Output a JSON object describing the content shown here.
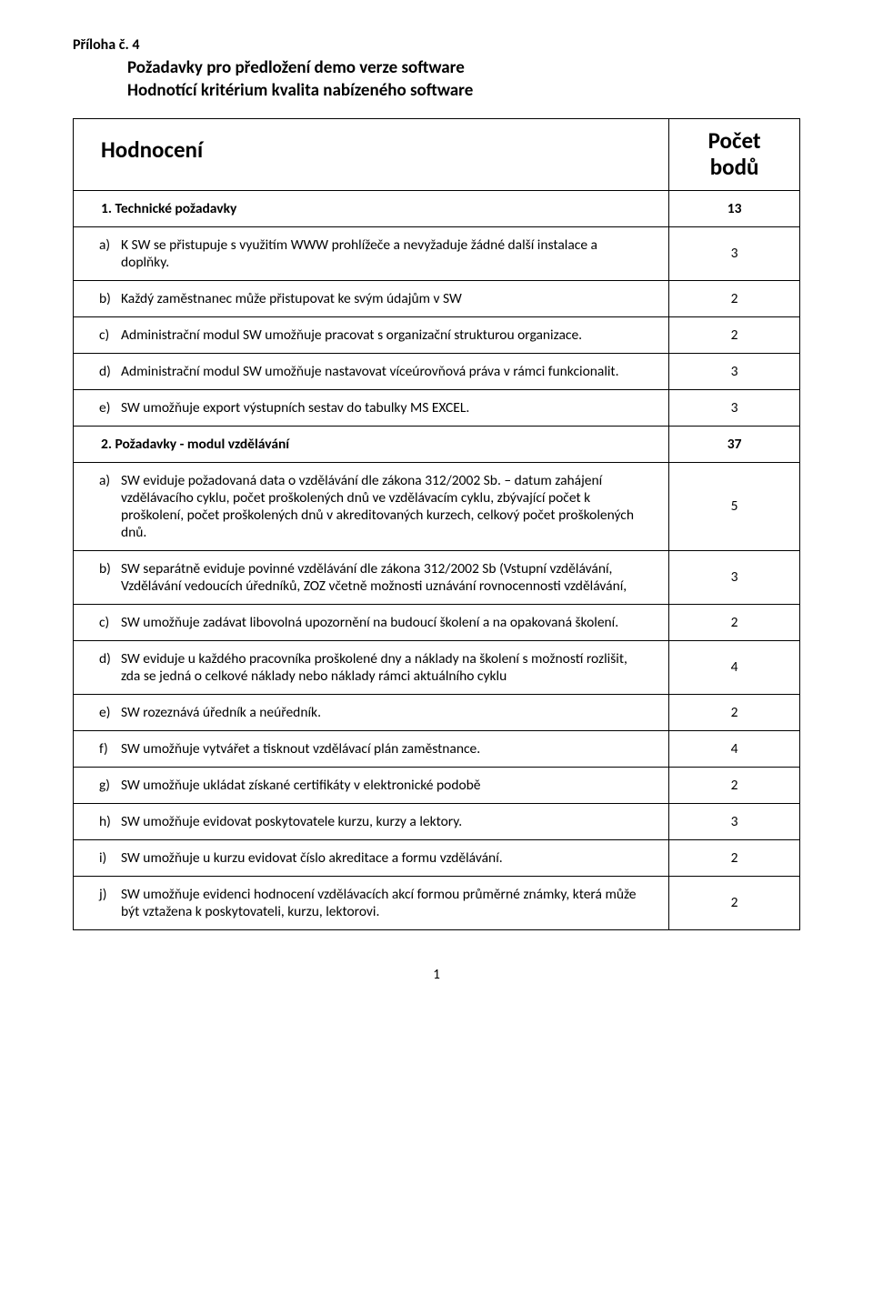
{
  "attachment_label": "Příloha č. 4",
  "title_line1": "Požadavky pro předložení demo verze software",
  "title_line2": "Hodnotící kritérium kvalita nabízeného software",
  "header_left": "Hodnocení",
  "header_right_line1": "Počet",
  "header_right_line2": "bodů",
  "page_number": "1",
  "sections": [
    {
      "title": "1.  Technické požadavky",
      "points": "13",
      "items": [
        {
          "letter": "a)",
          "text": "K SW se přistupuje s využitím WWW prohlížeče a nevyžaduje žádné další instalace a doplňky.",
          "points": "3"
        },
        {
          "letter": "b)",
          "text": "Každý zaměstnanec může přistupovat ke svým údajům v SW",
          "points": "2"
        },
        {
          "letter": "c)",
          "text": "Administrační modul SW umožňuje pracovat s organizační strukturou organizace.",
          "points": "2"
        },
        {
          "letter": "d)",
          "text": "Administrační modul SW umožňuje nastavovat víceúrovňová práva v rámci funkcionalit.",
          "points": "3"
        },
        {
          "letter": "e)",
          "text": "SW umožňuje export výstupních sestav do tabulky MS EXCEL.",
          "points": "3"
        }
      ]
    },
    {
      "title": "2.  Požadavky - modul vzdělávání",
      "points": "37",
      "items": [
        {
          "letter": "a)",
          "text": "SW eviduje požadovaná data o vzdělávání dle zákona 312/2002 Sb. – datum zahájení vzdělávacího cyklu, počet proškolených dnů ve vzdělávacím cyklu, zbývající počet k proškolení, počet proškolených dnů v akreditovaných kurzech, celkový počet proškolených dnů.",
          "points": "5"
        },
        {
          "letter": "b)",
          "text": "SW separátně eviduje povinné vzdělávání dle zákona 312/2002 Sb (Vstupní vzdělávání, Vzdělávání vedoucích úředníků, ZOZ včetně možnosti uznávání rovnocennosti vzdělávání,",
          "points": "3"
        },
        {
          "letter": "c)",
          "text": "SW umožňuje zadávat libovolná upozornění na budoucí školení a na opakovaná školení.",
          "points": "2"
        },
        {
          "letter": "d)",
          "text": "SW eviduje u každého pracovníka proškolené dny a náklady na školení s možností rozlišit, zda se jedná o celkové náklady nebo náklady rámci aktuálního cyklu",
          "points": "4"
        },
        {
          "letter": "e)",
          "text": "SW rozeznává úředník a neúředník.",
          "points": "2"
        },
        {
          "letter": "f)",
          "text": "SW umožňuje vytvářet a tisknout vzdělávací plán zaměstnance.",
          "points": "4"
        },
        {
          "letter": "g)",
          "text": "SW umožňuje ukládat získané certifikáty v elektronické podobě",
          "points": "2"
        },
        {
          "letter": "h)",
          "text": "SW umožňuje evidovat poskytovatele kurzu, kurzy a lektory.",
          "points": "3"
        },
        {
          "letter": "i)",
          "text": "SW umožňuje u kurzu evidovat číslo akreditace a formu vzdělávání.",
          "points": "2"
        },
        {
          "letter": "j)",
          "text": "SW umožňuje evidenci hodnocení vzdělávacích akcí formou průměrné známky, která může být vztažena k poskytovateli, kurzu, lektorovi.",
          "points": "2"
        }
      ]
    }
  ],
  "colors": {
    "text": "#000000",
    "background": "#ffffff",
    "border": "#000000"
  },
  "fonts": {
    "family": "Calibri, Arial, sans-serif",
    "title_size": 19,
    "header_size": 25,
    "body_size": 15.5
  }
}
